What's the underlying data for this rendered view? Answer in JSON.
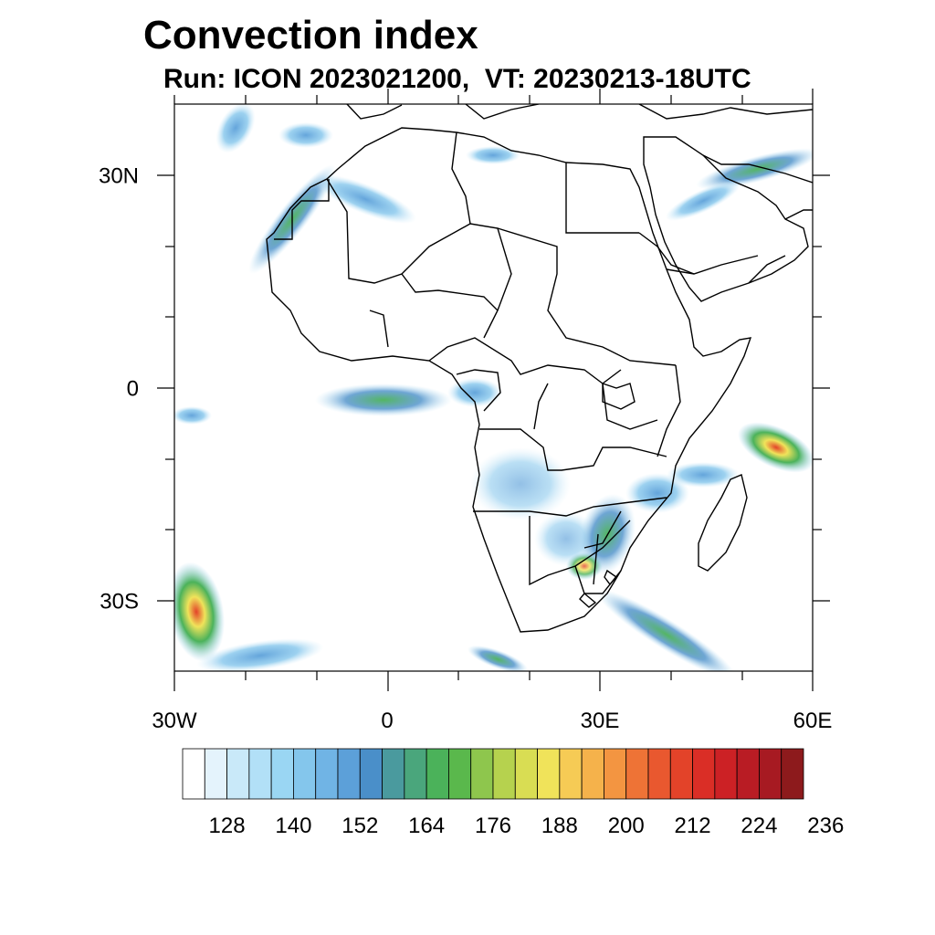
{
  "title": "Convection index",
  "subtitle": "Run: ICON 2023021200,  VT: 20230213-18UTC",
  "map": {
    "lon_range": [
      -30,
      60
    ],
    "lat_range": [
      -40,
      40
    ],
    "x_ticks": [
      {
        "value": -30,
        "label": "30W"
      },
      {
        "value": 0,
        "label": "0"
      },
      {
        "value": 30,
        "label": "30E"
      },
      {
        "value": 60,
        "label": "60E"
      }
    ],
    "y_ticks": [
      {
        "value": 30,
        "label": "30N"
      },
      {
        "value": 0,
        "label": "0"
      },
      {
        "value": -30,
        "label": "30S"
      }
    ]
  },
  "colorbar": {
    "colors": [
      "#ffffff",
      "#e4f3fc",
      "#c9e9f9",
      "#b2e0f7",
      "#9ad6f3",
      "#84c6ec",
      "#70b4e5",
      "#5ca0d9",
      "#4a8fc9",
      "#4a9a9e",
      "#4aa67c",
      "#4bb25a",
      "#5ab84c",
      "#8ec64d",
      "#b6d24e",
      "#d9dd53",
      "#f0e35a",
      "#f6cb55",
      "#f5b24b",
      "#f39541",
      "#ee7336",
      "#e9582f",
      "#e34329",
      "#da2e26",
      "#cc2125",
      "#b91c24",
      "#a71a22",
      "#8d1a1c"
    ],
    "labels": [
      "128",
      "140",
      "152",
      "164",
      "176",
      "188",
      "200",
      "212",
      "224",
      "236"
    ]
  }
}
